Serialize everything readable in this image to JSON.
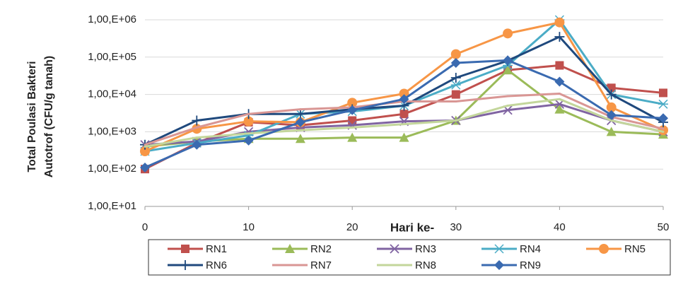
{
  "chart_data": {
    "type": "line",
    "y_label_lines": [
      "Total Poulasi Bakteri",
      "Autotrof (CFU/g tanah)"
    ],
    "x_label": "Hari ke-",
    "log_y": true,
    "grid": true,
    "x": [
      0,
      5,
      10,
      15,
      20,
      25,
      30,
      35,
      40,
      45,
      50
    ],
    "xlim": [
      0,
      50
    ],
    "xticks": [
      0,
      10,
      20,
      30,
      40,
      50
    ],
    "ylim": [
      10,
      1000000
    ],
    "yticks": [
      {
        "value": 10,
        "label": "1,00,E+01"
      },
      {
        "value": 100,
        "label": "1,00,E+02"
      },
      {
        "value": 1000,
        "label": "1,00,E+03"
      },
      {
        "value": 10000,
        "label": "1,00,E+04"
      },
      {
        "value": 100000,
        "label": "1,00,E+05"
      },
      {
        "value": 1000000,
        "label": "1,00,E+06"
      }
    ],
    "legend": "bottom",
    "series": [
      {
        "name": "RN1",
        "color": "#c0504d",
        "marker": "square",
        "values": [
          100,
          500,
          1800,
          1500,
          2000,
          3000,
          10000,
          45000,
          60000,
          15000,
          11000
        ]
      },
      {
        "name": "RN2",
        "color": "#9bbb59",
        "marker": "triangle",
        "values": [
          400,
          550,
          650,
          650,
          700,
          700,
          2000,
          45000,
          4000,
          1000,
          850
        ]
      },
      {
        "name": "RN3",
        "color": "#8064a2",
        "marker": "x",
        "values": [
          450,
          550,
          1000,
          1300,
          1500,
          1900,
          2000,
          3800,
          5500,
          2000,
          1000
        ]
      },
      {
        "name": "RN4",
        "color": "#4bacc6",
        "marker": "star",
        "values": [
          300,
          500,
          800,
          3000,
          3500,
          5000,
          18000,
          60000,
          1000000,
          10000,
          5500
        ]
      },
      {
        "name": "RN5",
        "color": "#f79646",
        "marker": "circle",
        "values": [
          300,
          1200,
          1900,
          1800,
          6000,
          10500,
          120000,
          430000,
          850000,
          4500,
          1100
        ]
      },
      {
        "name": "RN6",
        "color": "#1f497d",
        "marker": "plus",
        "values": [
          450,
          2000,
          3000,
          3000,
          4000,
          5000,
          28000,
          80000,
          350000,
          10000,
          1800
        ]
      },
      {
        "name": "RN7",
        "color": "#d99694",
        "marker": "none",
        "values": [
          450,
          1300,
          3000,
          4000,
          4500,
          6500,
          6500,
          9000,
          10500,
          2500,
          1200
        ]
      },
      {
        "name": "RN8",
        "color": "#c3d69b",
        "marker": "none",
        "values": [
          400,
          700,
          900,
          1100,
          1300,
          1600,
          2000,
          5000,
          7500,
          2000,
          1000
        ]
      },
      {
        "name": "RN9",
        "color": "#3a6ab0",
        "marker": "diamond",
        "values": [
          110,
          450,
          580,
          1800,
          3800,
          7500,
          70000,
          82000,
          22000,
          2800,
          2300
        ]
      }
    ]
  }
}
